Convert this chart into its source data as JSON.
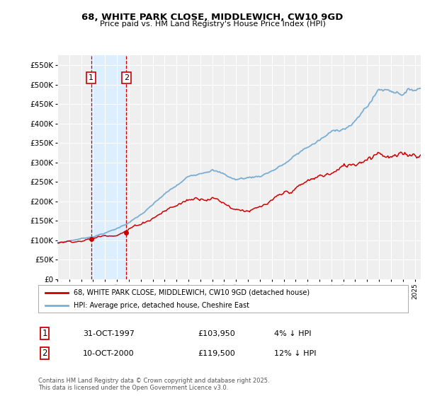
{
  "title_line1": "68, WHITE PARK CLOSE, MIDDLEWICH, CW10 9GD",
  "title_line2": "Price paid vs. HM Land Registry's House Price Index (HPI)",
  "ylabel_ticks": [
    "£0",
    "£50K",
    "£100K",
    "£150K",
    "£200K",
    "£250K",
    "£300K",
    "£350K",
    "£400K",
    "£450K",
    "£500K",
    "£550K"
  ],
  "ytick_values": [
    0,
    50000,
    100000,
    150000,
    200000,
    250000,
    300000,
    350000,
    400000,
    450000,
    500000,
    550000
  ],
  "ylim": [
    0,
    575000
  ],
  "xlim_start": 1995.0,
  "xlim_end": 2025.5,
  "sale1_date": 1997.83,
  "sale1_label": "1",
  "sale1_price": 103950,
  "sale2_date": 2000.78,
  "sale2_label": "2",
  "sale2_price": 119500,
  "hpi_color": "#7aadd4",
  "price_color": "#cc0000",
  "highlight_color": "#ddeeff",
  "legend_line1": "68, WHITE PARK CLOSE, MIDDLEWICH, CW10 9GD (detached house)",
  "legend_line2": "HPI: Average price, detached house, Cheshire East",
  "table_row1": [
    "1",
    "31-OCT-1997",
    "£103,950",
    "4% ↓ HPI"
  ],
  "table_row2": [
    "2",
    "10-OCT-2000",
    "£119,500",
    "12% ↓ HPI"
  ],
  "footer": "Contains HM Land Registry data © Crown copyright and database right 2025.\nThis data is licensed under the Open Government Licence v3.0.",
  "bg_color": "#ffffff",
  "plot_bg_color": "#efefef",
  "grid_color": "#ffffff"
}
